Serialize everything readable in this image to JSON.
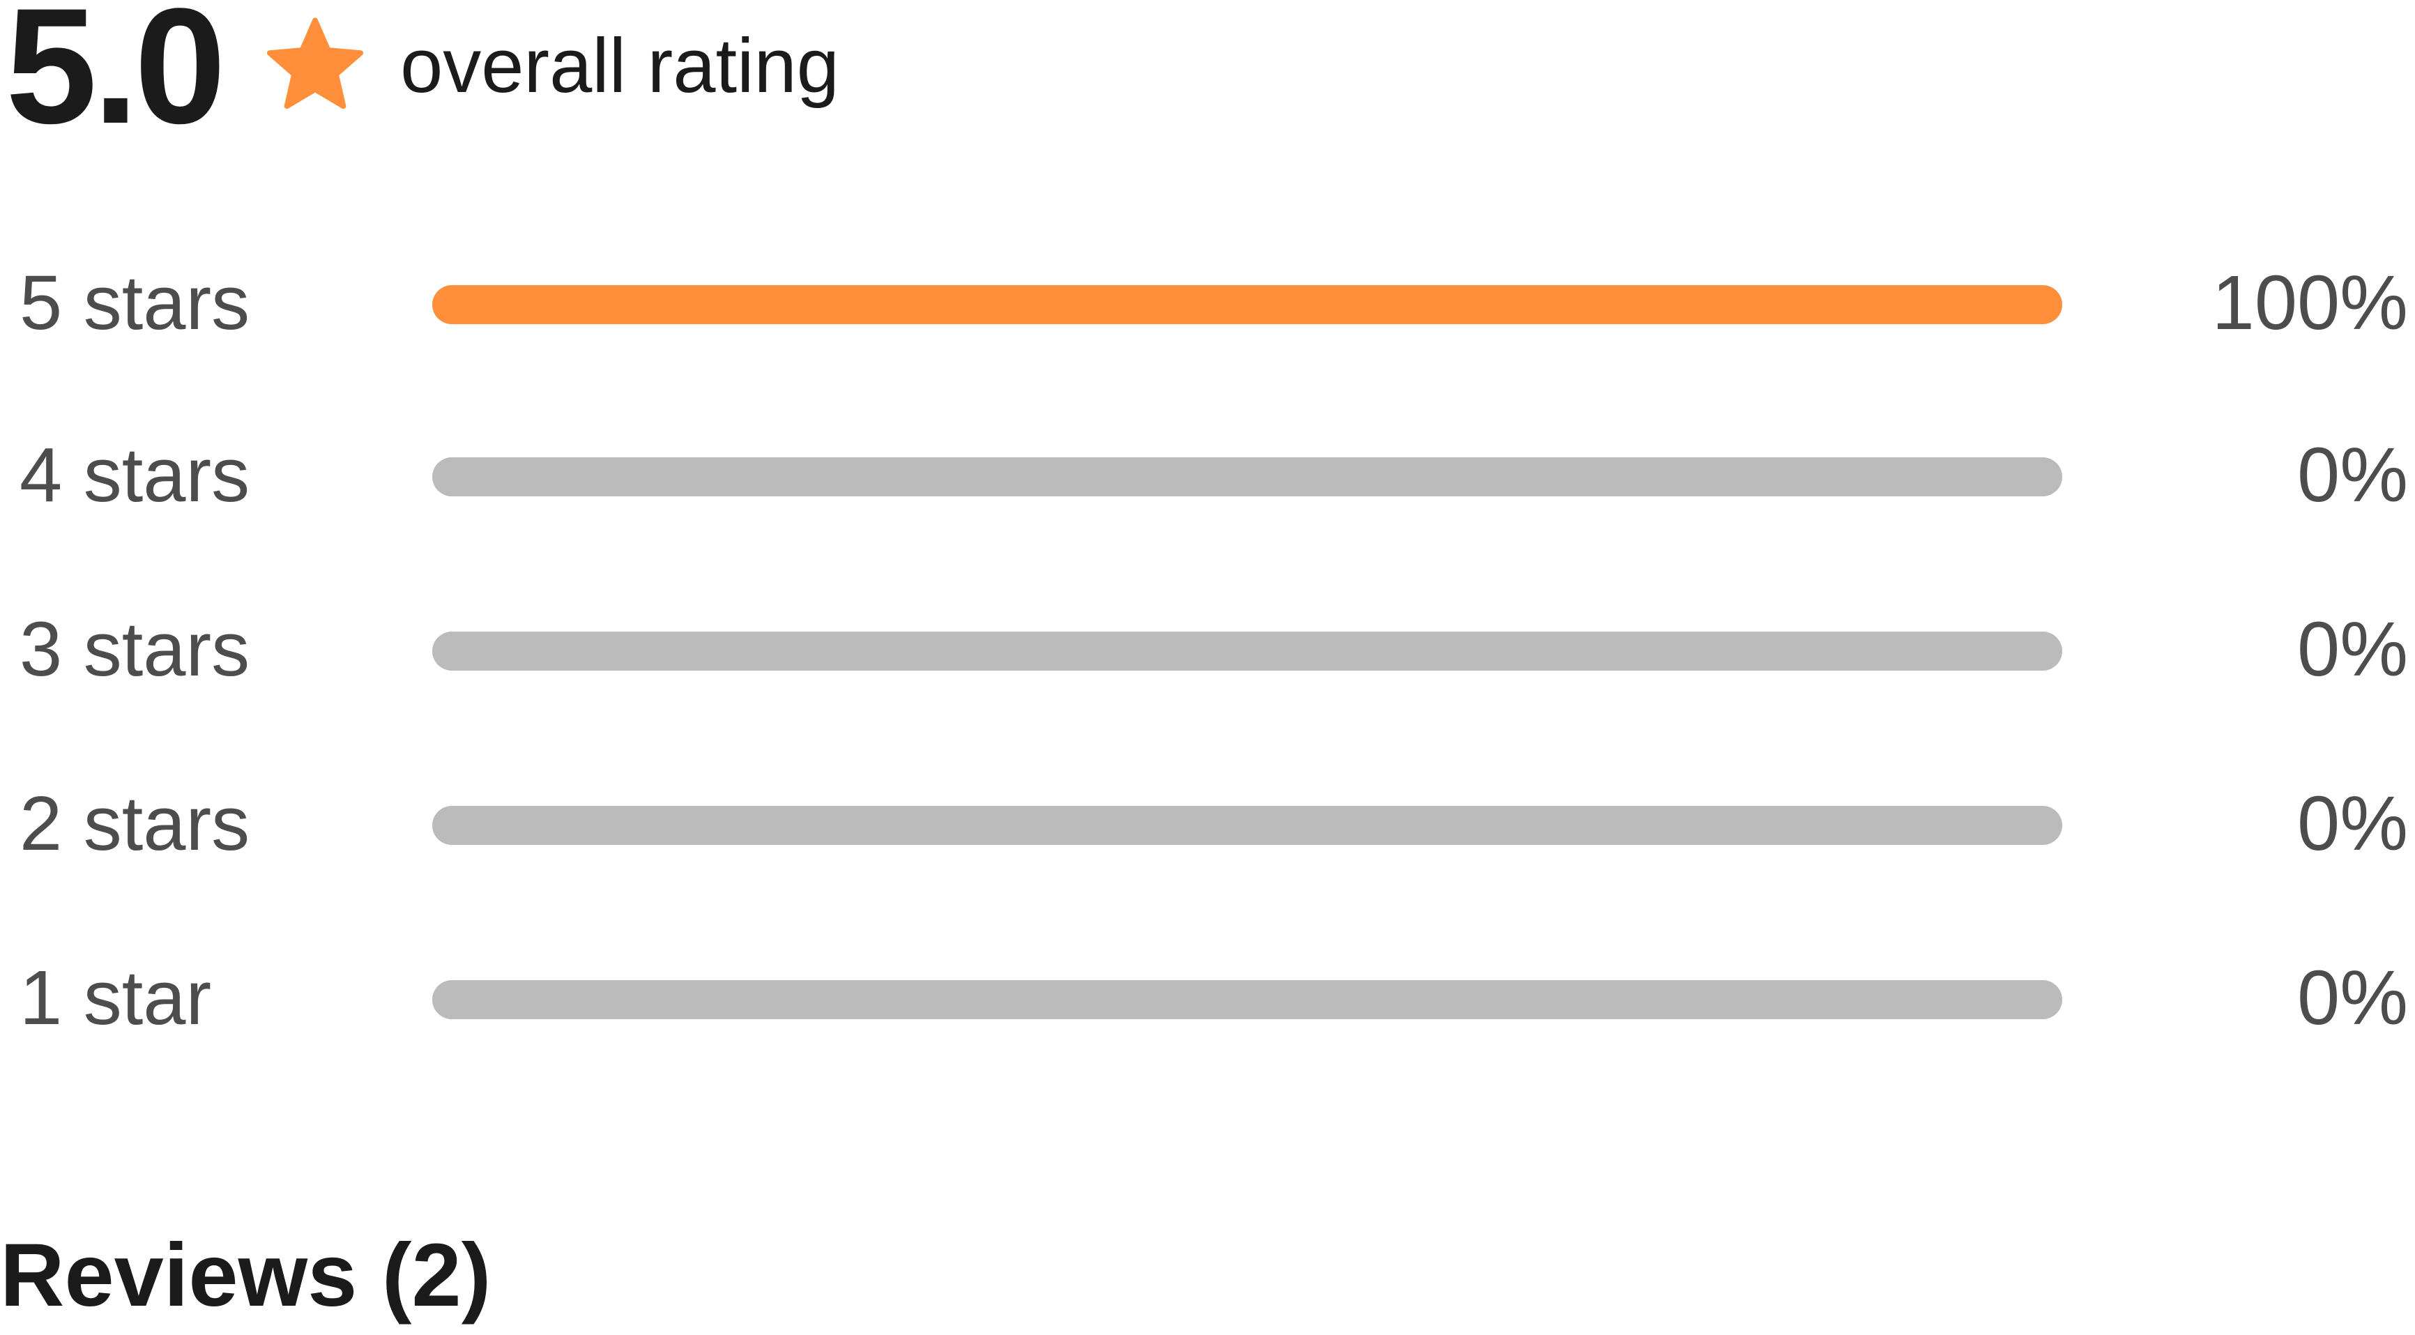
{
  "summary": {
    "score": "5.0",
    "label": "overall rating",
    "star_icon": "star-icon",
    "accent_color": "#ff8f3a"
  },
  "distribution": [
    {
      "label": "5 stars",
      "percent_text": "100%",
      "fraction": 1.0
    },
    {
      "label": "4 stars",
      "percent_text": "0%",
      "fraction": 0.0
    },
    {
      "label": "3 stars",
      "percent_text": "0%",
      "fraction": 0.0
    },
    {
      "label": "2 stars",
      "percent_text": "0%",
      "fraction": 0.0
    },
    {
      "label": "1 star",
      "percent_text": "0%",
      "fraction": 0.0
    }
  ],
  "colors": {
    "track": "#bbbbbb",
    "fill": "#ff8f3a",
    "label_text": "#4d4d4d",
    "heading_text": "#1b1b1b"
  },
  "reviews": {
    "heading": "Reviews (2)"
  }
}
